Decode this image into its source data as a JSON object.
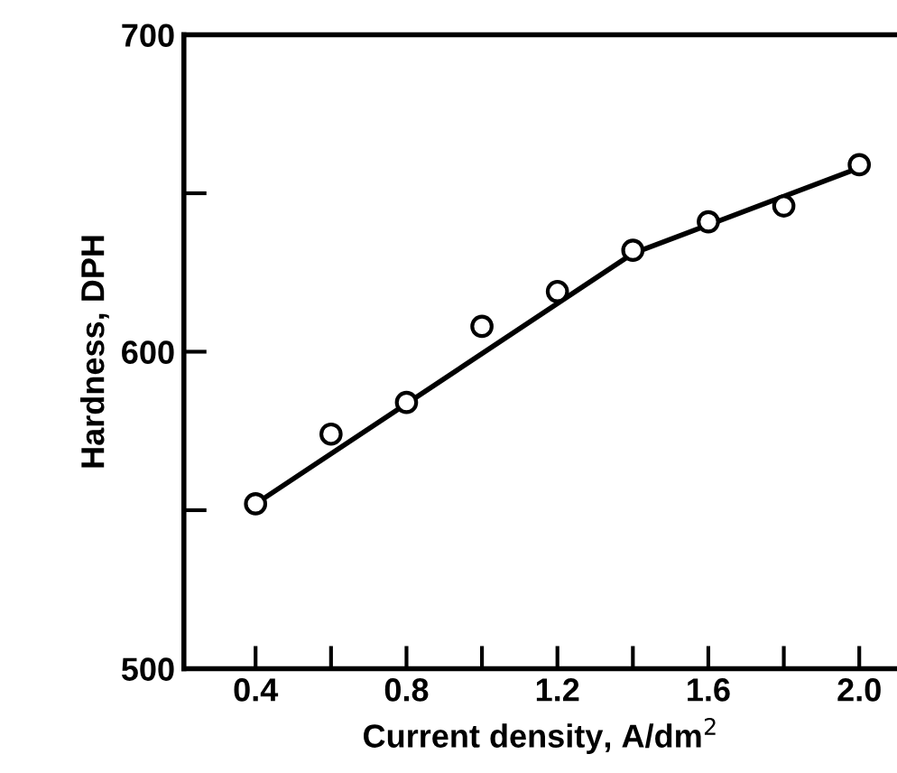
{
  "chart_data": {
    "type": "scatter",
    "xlabel": "Current density, A/dm$^{2}$",
    "ylabel": "Hardness, DPH",
    "x": [
      0.4,
      0.6,
      0.8,
      1.0,
      1.2,
      1.4,
      1.6,
      1.8,
      2.0
    ],
    "series": [
      {
        "color": "#000000",
        "marker": "circle",
        "values": [
          552,
          574,
          584,
          608,
          619,
          632,
          641,
          646,
          659
        ]
      },
      {
        "type": "line",
        "color": "#000000",
        "marker": "none",
        "line_style": "solid",
        "x": [
          0.4,
          1.4,
          2.0
        ],
        "values": [
          552,
          631,
          658
        ]
      }
    ],
    "xlim": [
      0.21,
      2.1
    ],
    "ylim": [
      500,
      700
    ],
    "xticks": [
      0.4,
      {
        "value": 0.6,
        "label": null
      },
      0.8,
      {
        "value": 1.0,
        "label": null
      },
      1.2,
      {
        "value": 1.4,
        "label": null
      },
      1.6,
      {
        "value": 1.8,
        "label": null
      },
      {
        "value": 2.0,
        "label": "2.0"
      }
    ],
    "yticks": [
      500,
      {
        "value": 550,
        "label": null
      },
      600,
      {
        "value": 650,
        "label": null
      },
      700
    ],
    "grid": false,
    "legend": false
  }
}
